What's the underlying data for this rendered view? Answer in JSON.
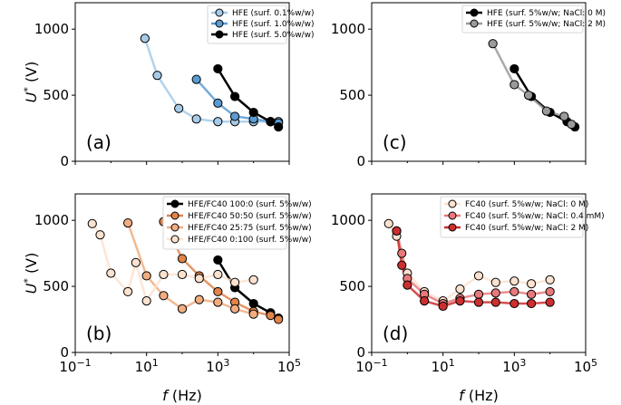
{
  "chart_data": [
    {
      "type": "line",
      "panel": "(a)",
      "ylabel": "U* (V)",
      "xlabel": "",
      "xscale": "log",
      "xlim": [
        0.1,
        100000
      ],
      "ylim": [
        0,
        1200
      ],
      "yticks": [
        0,
        500,
        1000
      ],
      "legend_position": "top-right",
      "series": [
        {
          "name": "HFE (surf. 0.1%w/w)",
          "color": "#a5cbe9",
          "x": [
            9,
            20,
            80,
            250,
            1000,
            3000,
            10000,
            30000,
            50000
          ],
          "y": [
            930,
            650,
            400,
            320,
            300,
            300,
            300,
            300,
            300
          ]
        },
        {
          "name": "HFE (surf. 1.0%w/w)",
          "color": "#5a9bd3",
          "x": [
            250,
            1000,
            3000,
            10000,
            30000,
            50000
          ],
          "y": [
            620,
            440,
            340,
            320,
            300,
            290
          ]
        },
        {
          "name": "HFE (surf. 5.0%w/w)",
          "color": "#000000",
          "x": [
            1000,
            3000,
            10000,
            30000,
            50000
          ],
          "y": [
            700,
            490,
            370,
            300,
            260
          ]
        }
      ]
    },
    {
      "type": "line",
      "panel": "(c)",
      "ylabel": "",
      "xlabel": "",
      "xscale": "log",
      "xlim": [
        0.1,
        100000
      ],
      "ylim": [
        0,
        1200
      ],
      "yticks": [
        0,
        500,
        1000
      ],
      "legend_position": "top-right",
      "series": [
        {
          "name": "HFE (surf. 5%w/w; NaCl: 0 M)",
          "color": "#000000",
          "x": [
            1000,
            3000,
            10000,
            30000,
            50000
          ],
          "y": [
            700,
            490,
            370,
            300,
            260
          ]
        },
        {
          "name": "HFE (surf. 5%w/w; NaCl: 2 M)",
          "color": "#9a9a9a",
          "x": [
            250,
            1000,
            2500,
            8000,
            25000,
            40000
          ],
          "y": [
            890,
            580,
            500,
            380,
            340,
            280
          ]
        }
      ]
    },
    {
      "type": "line",
      "panel": "(b)",
      "ylabel": "U* (V)",
      "xlabel": "f (Hz)",
      "xscale": "log",
      "xlim": [
        0.1,
        100000
      ],
      "ylim": [
        0,
        1200
      ],
      "yticks": [
        0,
        500,
        1000
      ],
      "xticks": [
        "10⁻¹",
        "10¹",
        "10³",
        "10⁵"
      ],
      "legend_position": "top-right",
      "series": [
        {
          "name": "HFE/FC40 100:0 (surf. 5%w/w)",
          "color": "#000000",
          "x": [
            1000,
            3000,
            10000,
            30000,
            50000
          ],
          "y": [
            700,
            490,
            370,
            300,
            260
          ]
        },
        {
          "name": "HFE/FC40 50:50 (surf. 5%w/w)",
          "color": "#e0844a",
          "x": [
            30,
            100,
            300,
            1000,
            3000,
            10000,
            30000,
            50000
          ],
          "y": [
            990,
            710,
            580,
            460,
            380,
            310,
            280,
            250
          ]
        },
        {
          "name": "HFE/FC40 25:75 (surf. 5%w/w)",
          "color": "#f0ad80",
          "x": [
            3,
            10,
            30,
            100,
            300,
            1000,
            3000,
            10000
          ],
          "y": [
            980,
            580,
            430,
            330,
            400,
            380,
            330,
            290
          ]
        },
        {
          "name": "HFE/FC40 0:100 (surf. 5%w/w)",
          "color": "#fde2cf",
          "x": [
            0.3,
            0.5,
            1,
            3,
            5,
            10,
            30,
            100,
            300,
            1000,
            3000,
            10000
          ],
          "y": [
            975,
            890,
            600,
            460,
            680,
            390,
            590,
            590,
            560,
            590,
            530,
            550
          ]
        }
      ]
    },
    {
      "type": "line",
      "panel": "(d)",
      "ylabel": "",
      "xlabel": "f (Hz)",
      "xscale": "log",
      "xlim": [
        0.1,
        100000
      ],
      "ylim": [
        0,
        1200
      ],
      "yticks": [
        0,
        500,
        1000
      ],
      "xticks": [
        "10⁻¹",
        "10¹",
        "10³",
        "10⁵"
      ],
      "legend_position": "top-right",
      "series": [
        {
          "name": "FC40 (surf. 5%w/w; NaCl: 0 M)",
          "color": "#fde2cf",
          "x": [
            0.3,
            0.5,
            1,
            3,
            10,
            30,
            100,
            300,
            1000,
            3000,
            10000
          ],
          "y": [
            975,
            880,
            600,
            460,
            390,
            480,
            580,
            530,
            540,
            520,
            550
          ]
        },
        {
          "name": "FC40 (surf. 5%w/w; NaCl: 0.4 mM)",
          "color": "#e8797a",
          "x": [
            0.5,
            0.7,
            1,
            3,
            10,
            30,
            100,
            300,
            1000,
            3000,
            10000
          ],
          "y": [
            920,
            750,
            560,
            440,
            370,
            410,
            440,
            450,
            460,
            440,
            460
          ]
        },
        {
          "name": "FC40 (surf. 5%w/w; NaCl: 2 M)",
          "color": "#cc2f2f",
          "x": [
            0.5,
            0.7,
            1,
            3,
            10,
            30,
            100,
            300,
            1000,
            3000,
            10000
          ],
          "y": [
            920,
            660,
            510,
            390,
            350,
            390,
            380,
            380,
            370,
            370,
            380
          ]
        }
      ]
    }
  ]
}
